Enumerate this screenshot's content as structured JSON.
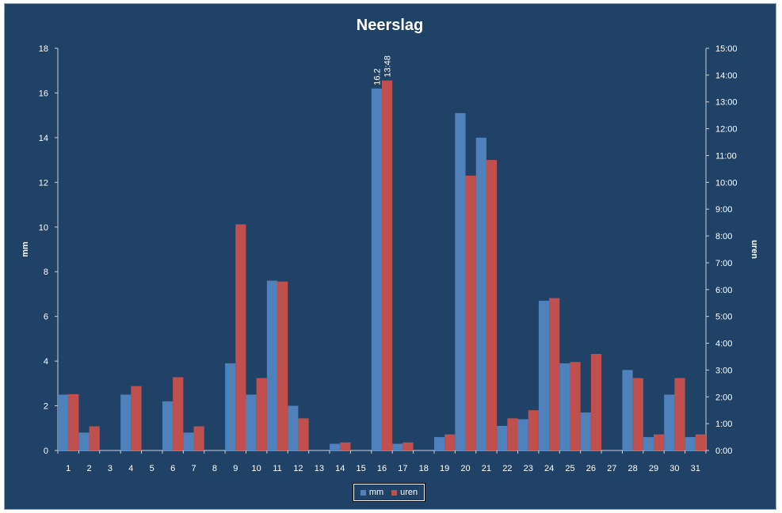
{
  "chart_data": {
    "type": "bar",
    "title": "Neerslag",
    "ylabel": "mm",
    "y2label": "uren",
    "ylim": [
      0,
      18
    ],
    "y2lim_hours": [
      0,
      15
    ],
    "yticks": [
      "0",
      "2",
      "4",
      "6",
      "8",
      "10",
      "12",
      "14",
      "16",
      "18"
    ],
    "y2ticks": [
      "0:00",
      "1:00",
      "2:00",
      "3:00",
      "4:00",
      "5:00",
      "6:00",
      "7:00",
      "8:00",
      "9:00",
      "10:00",
      "11:00",
      "12:00",
      "13:00",
      "14:00",
      "15:00"
    ],
    "categories": [
      "1",
      "2",
      "3",
      "4",
      "5",
      "6",
      "7",
      "8",
      "9",
      "10",
      "11",
      "12",
      "13",
      "14",
      "15",
      "16",
      "17",
      "18",
      "19",
      "20",
      "21",
      "22",
      "23",
      "24",
      "25",
      "26",
      "27",
      "28",
      "29",
      "30",
      "31"
    ],
    "series": [
      {
        "name": "mm",
        "axis": "left",
        "color": "#4f81bd",
        "values": [
          2.5,
          0.8,
          0,
          2.5,
          0,
          2.2,
          0.8,
          0,
          3.9,
          2.5,
          7.6,
          2.0,
          0,
          0.3,
          0,
          16.2,
          0.3,
          0,
          0.6,
          15.1,
          14.0,
          1.1,
          1.4,
          6.7,
          3.9,
          1.7,
          0,
          3.6,
          0.6,
          2.5,
          0.6
        ]
      },
      {
        "name": "uren",
        "axis": "right",
        "unit": "hours",
        "color": "#c0504d",
        "values": [
          2.1,
          0.9,
          0,
          2.4,
          0,
          2.733,
          0.9,
          0,
          8.433,
          2.7,
          6.3,
          1.2,
          0,
          0.3,
          0,
          13.8,
          0.3,
          0,
          0.6,
          10.25,
          10.833,
          1.2,
          1.5,
          5.683,
          3.3,
          3.6,
          0,
          2.7,
          0.6,
          2.7,
          0.6
        ]
      }
    ],
    "annotations": [
      {
        "category": "16",
        "series": "mm",
        "text": "16.2"
      },
      {
        "category": "16",
        "series": "uren",
        "text": "13:48"
      }
    ],
    "grid": false,
    "legend_position": "bottom"
  },
  "colors": {
    "background": "#1f4266",
    "axis": "#c8d0d8",
    "text": "#ffffff"
  }
}
